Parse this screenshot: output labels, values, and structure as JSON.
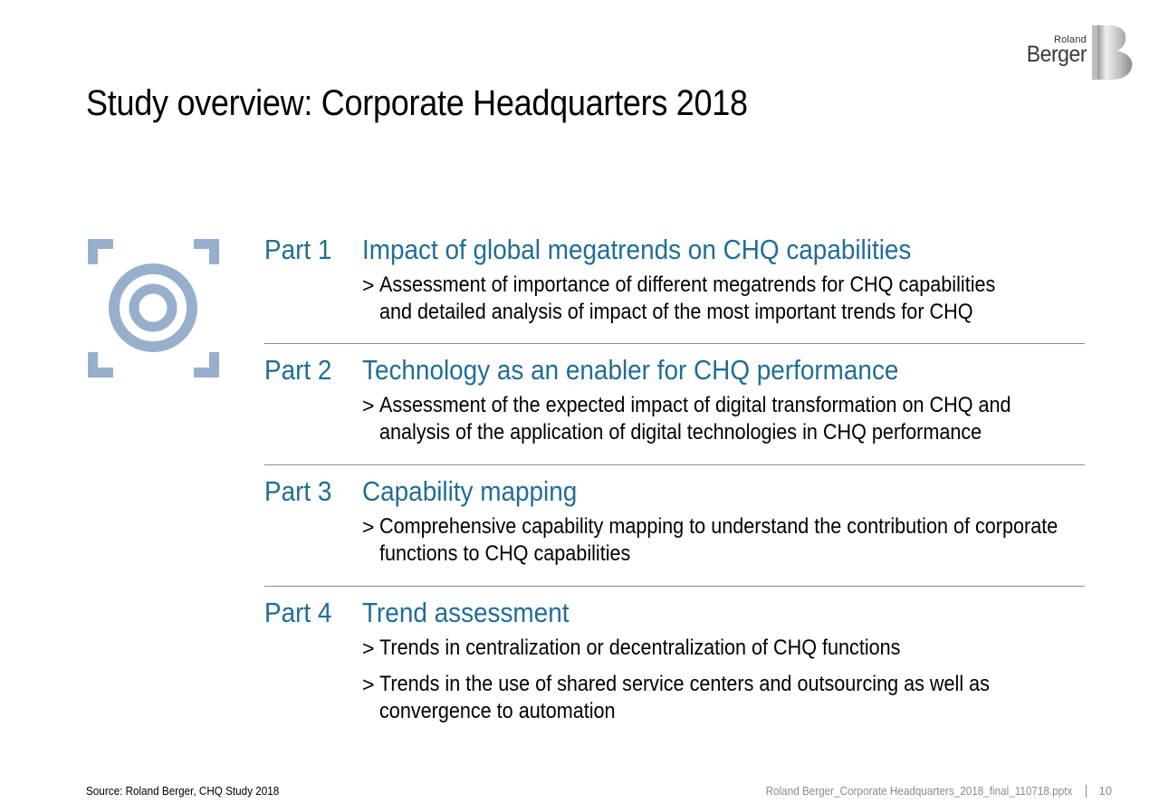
{
  "logo": {
    "line1": "Roland",
    "line2": "Berger"
  },
  "title": "Study overview: Corporate Headquarters 2018",
  "icon": "target-icon",
  "colors": {
    "accent": "#1f6e96",
    "icon": "#98afcc",
    "divider": "#8c8c8c"
  },
  "parts": [
    {
      "number": "Part 1",
      "title": "Impact of global megatrends on CHQ capabilities",
      "bullets": [
        [
          "Assessment of importance of different megatrends for CHQ capabilities",
          "and detailed analysis of impact of the most important trends for CHQ"
        ]
      ]
    },
    {
      "number": "Part 2",
      "title": "Technology as an enabler for CHQ performance",
      "bullets": [
        [
          "Assessment of the expected impact of digital transformation on CHQ and",
          "analysis of the application of digital technologies in CHQ performance"
        ]
      ]
    },
    {
      "number": "Part 3",
      "title": "Capability mapping",
      "bullets": [
        [
          "Comprehensive capability mapping to understand the contribution of corporate",
          "functions to CHQ capabilities"
        ]
      ]
    },
    {
      "number": "Part 4",
      "title": "Trend assessment",
      "bullets": [
        [
          "Trends in centralization or decentralization of CHQ functions"
        ],
        [
          "Trends in the use of shared service centers and outsourcing as well as",
          "convergence to automation"
        ]
      ]
    }
  ],
  "footer": {
    "source": "Source: Roland Berger, CHQ Study 2018",
    "file": "Roland Berger_Corporate Headquarters_2018_final_110718.pptx",
    "page": "10"
  }
}
